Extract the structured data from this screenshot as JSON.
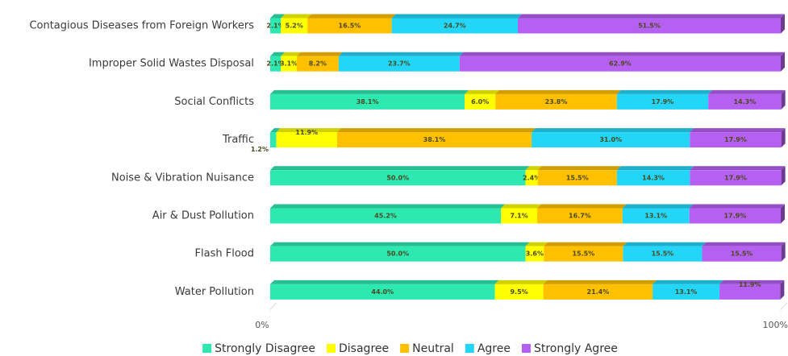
{
  "chart_data": {
    "type": "stacked-bar-horizontal",
    "categories": [
      "Contagious Diseases from Foreign Workers",
      "Improper Solid Wastes Disposal",
      "Social Conflicts",
      "Traffic",
      "Noise & Vibration Nuisance",
      "Air & Dust Pollution",
      "Flash Flood",
      "Water Pollution"
    ],
    "series": [
      {
        "name": "Strongly Disagree",
        "color": "#2ee8b2",
        "values": [
          2.1,
          2.1,
          38.1,
          1.2,
          50.0,
          45.2,
          50.0,
          44.0
        ],
        "value_labels": [
          "2.1%",
          "2.1%",
          "38.1%",
          "1.2%",
          "50.0%",
          "45.2%",
          "50.0%",
          "44.0%"
        ]
      },
      {
        "name": "Disagree",
        "color": "#ffff00",
        "values": [
          5.2,
          3.1,
          6.0,
          11.9,
          2.4,
          7.1,
          3.6,
          9.5
        ],
        "value_labels": [
          "5.2%",
          "3.1%",
          "6.0%",
          "11.9%",
          "2.4%",
          "7.1%",
          "3.6%",
          "9.5%"
        ]
      },
      {
        "name": "Neutral",
        "color": "#ffc000",
        "values": [
          16.5,
          8.2,
          23.8,
          38.1,
          15.5,
          16.7,
          15.5,
          21.4
        ],
        "value_labels": [
          "16.5%",
          "8.2%",
          "23.8%",
          "38.1%",
          "15.5%",
          "16.7%",
          "15.5%",
          "21.4%"
        ]
      },
      {
        "name": "Agree",
        "color": "#23d5f7",
        "values": [
          24.7,
          23.7,
          17.9,
          31.0,
          14.3,
          13.1,
          15.5,
          13.1
        ],
        "value_labels": [
          "24.7%",
          "23.7%",
          "17.9%",
          "31.0%",
          "14.3%",
          "13.1%",
          "15.5%",
          "13.1%"
        ]
      },
      {
        "name": "Strongly Agree",
        "color": "#b660f2",
        "values": [
          51.5,
          62.9,
          14.3,
          17.9,
          17.9,
          17.9,
          15.5,
          11.9
        ],
        "value_labels": [
          "51.5%",
          "62.9%",
          "14.3%",
          "17.9%",
          "17.9%",
          "17.9%",
          "15.5%",
          "11.9%"
        ]
      }
    ],
    "xlim": [
      0,
      100
    ],
    "xticks": [
      {
        "value": 0,
        "label": "0%"
      },
      {
        "value": 100,
        "label": "100%"
      }
    ],
    "legend": "bottom"
  }
}
